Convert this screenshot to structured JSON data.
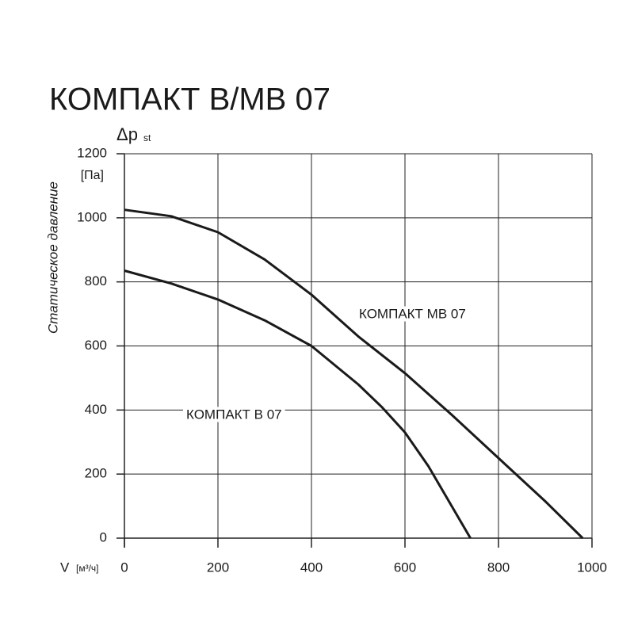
{
  "chart_data": {
    "type": "line",
    "title": "КОМПАКТ В/МВ 07",
    "y_label_symbol": "Δp",
    "y_label_subscript": "st",
    "y_unit": "[Па]",
    "y_label": "Статическое давление",
    "x_label_symbol": "V",
    "x_unit": "[м³/ч]",
    "annotations": [
      "КОМПАКТ MB 07",
      "КОМПАКТ В 07"
    ],
    "xlim": [
      0,
      1000
    ],
    "xticks": [
      0,
      200,
      400,
      600,
      800,
      1000
    ],
    "ylim": [
      0,
      1200
    ],
    "yticks": [
      0,
      200,
      400,
      600,
      800,
      1000,
      1200
    ],
    "grid": true,
    "series": [
      {
        "name": "КОМПАКТ MB 07",
        "color": "#1a1a1a",
        "x": [
          0,
          100,
          200,
          300,
          400,
          500,
          600,
          700,
          800,
          900,
          980
        ],
        "values": [
          1025,
          1005,
          955,
          870,
          760,
          630,
          515,
          385,
          250,
          115,
          0
        ]
      },
      {
        "name": "КОМПАКТ В 07",
        "color": "#1a1a1a",
        "x": [
          0,
          100,
          200,
          300,
          400,
          500,
          550,
          600,
          650,
          700,
          740
        ],
        "values": [
          835,
          795,
          745,
          680,
          600,
          480,
          410,
          330,
          225,
          100,
          0
        ]
      }
    ]
  }
}
